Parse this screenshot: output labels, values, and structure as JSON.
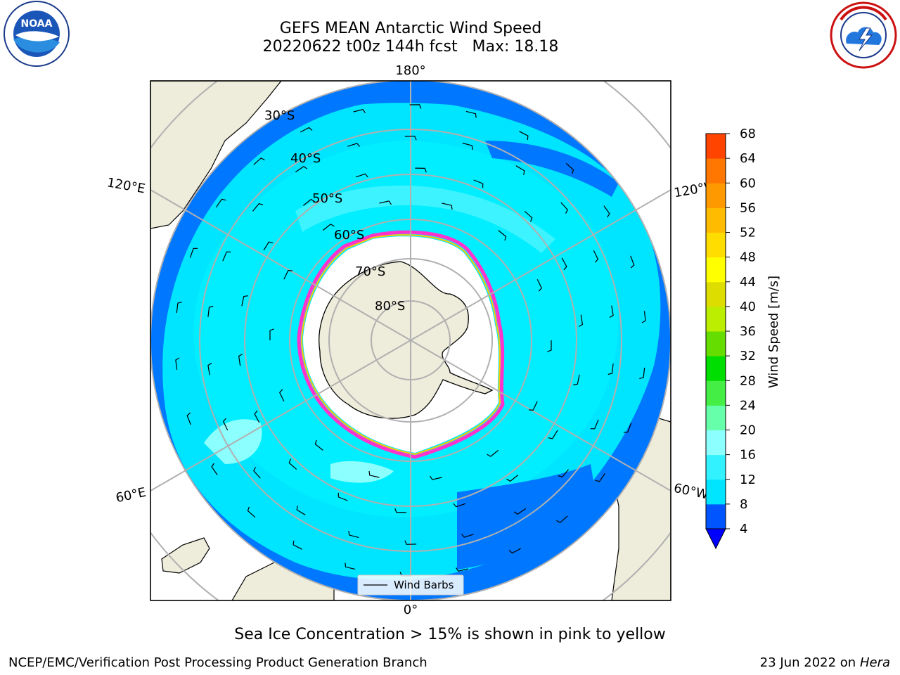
{
  "title": {
    "line1": "GEFS MEAN Antarctic Wind Speed",
    "line2": "20220622 t00z 144h fcst   Max: 18.18"
  },
  "map": {
    "projection": "south polar stereographic",
    "lon_labels": {
      "top": "180°",
      "bottom": "0°",
      "upper_left": "120°E",
      "upper_right": "120°W",
      "lower_left": "60°E",
      "lower_right": "60°W"
    },
    "lat_labels": [
      "30°S",
      "40°S",
      "50°S",
      "60°S",
      "70°S",
      "80°S"
    ],
    "legend": {
      "label": "Wind Barbs"
    },
    "colors": {
      "land": "#eeecda",
      "sea_ice": "#ffffff",
      "ice_edge_pink": "#ff33cc",
      "ice_edge_yellow": "#ffc600",
      "grid": "#b0b0b0"
    }
  },
  "colorbar": {
    "label": "Wind Speed [m/s]",
    "ticks": [
      "4",
      "8",
      "12",
      "16",
      "20",
      "24",
      "28",
      "32",
      "36",
      "40",
      "44",
      "48",
      "52",
      "56",
      "60",
      "64",
      "68"
    ],
    "colors": [
      "#0055ff",
      "#00e5ff",
      "#33f2ff",
      "#8cffff",
      "#66ffaa",
      "#44ee44",
      "#00dd00",
      "#66dd00",
      "#bbee00",
      "#dddd00",
      "#ffff00",
      "#ffdd00",
      "#ffbb00",
      "#ff9900",
      "#ff7700",
      "#ff4400",
      "#ff0000"
    ],
    "extend_color": "#0000ff"
  },
  "footer": {
    "note": "Sea Ice Concentration > 15% is shown in pink to yellow",
    "credit_left": "NCEP/EMC/Verification Post Processing Product Generation Branch",
    "credit_right_date": "23 Jun 2022 on",
    "credit_right_host": "Hera"
  },
  "logos": {
    "left": "noaa-logo",
    "right": "nws-logo"
  }
}
